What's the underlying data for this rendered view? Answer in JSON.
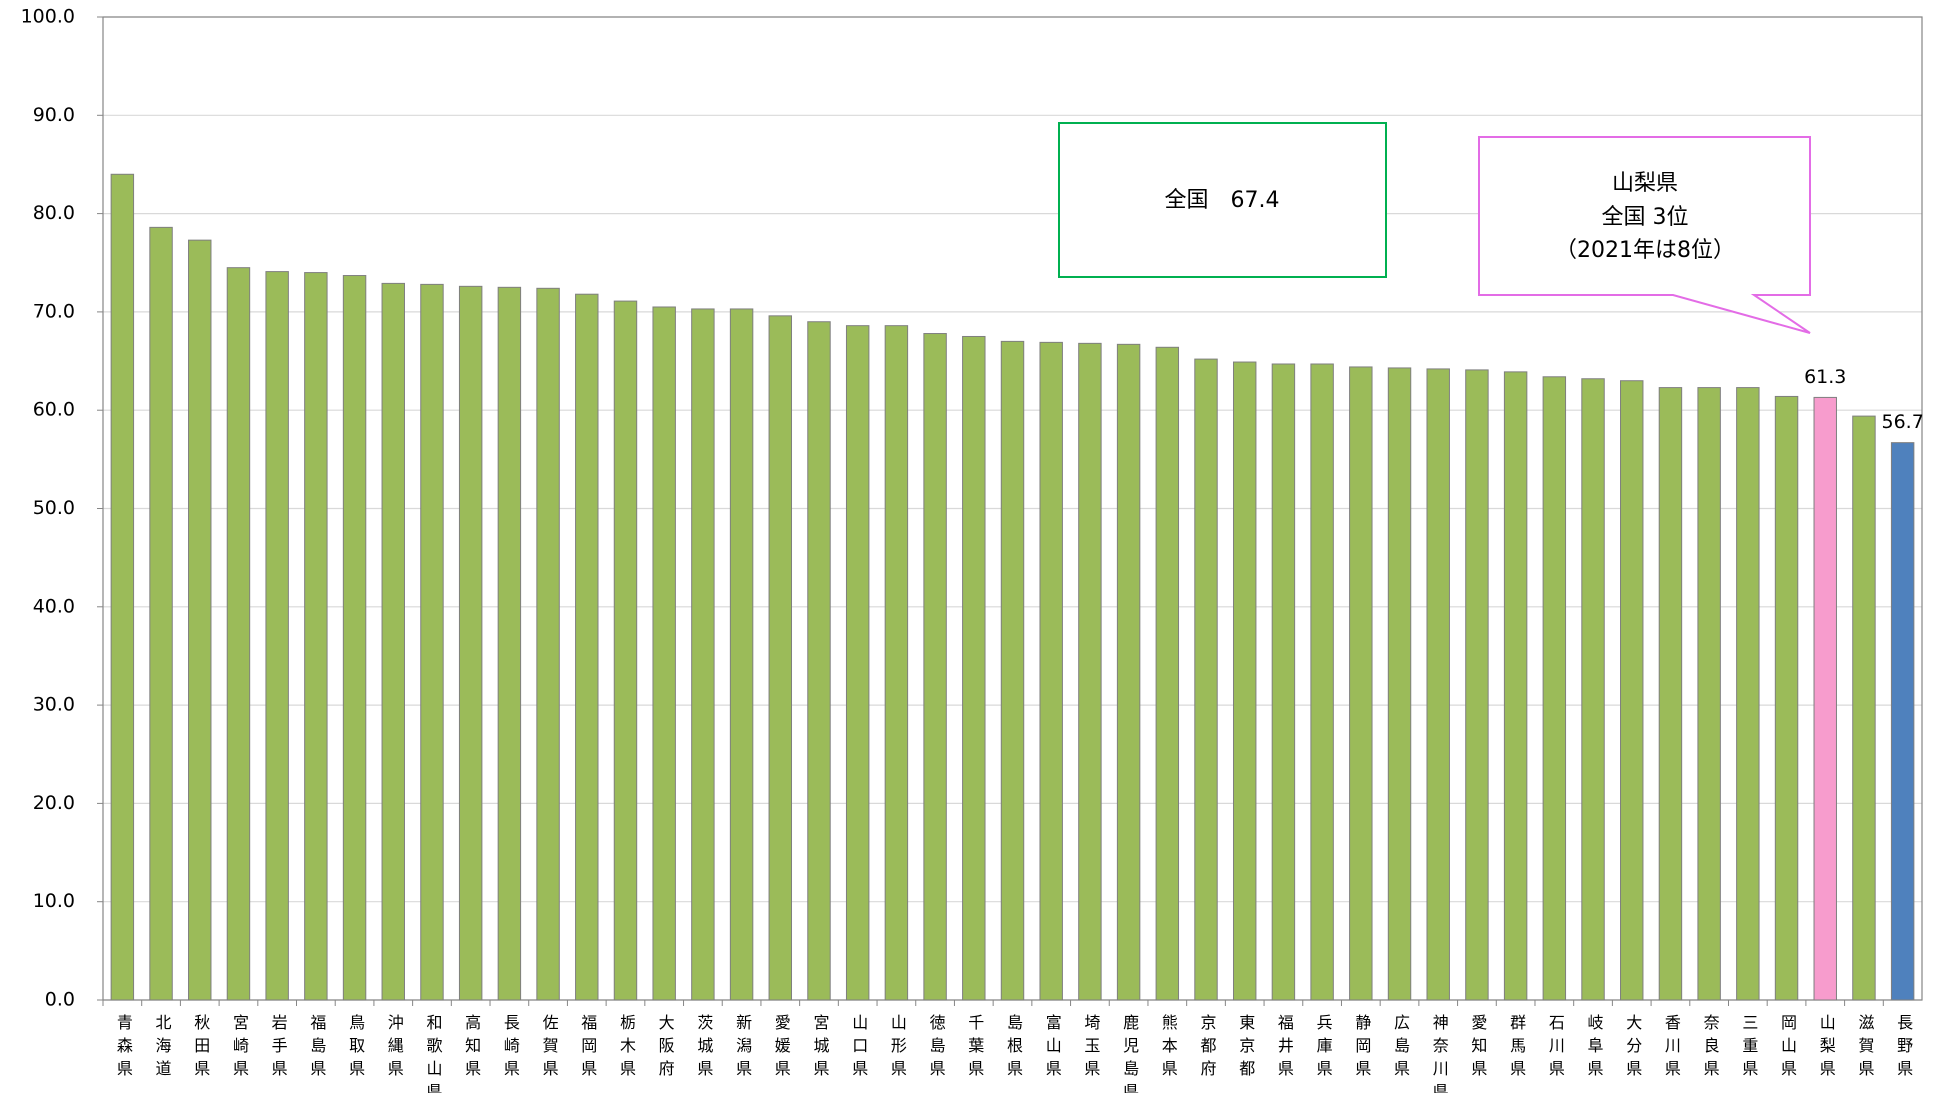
{
  "chart_data": {
    "type": "bar",
    "categories": [
      "青森県",
      "北海道",
      "秋田県",
      "宮崎県",
      "岩手県",
      "福島県",
      "鳥取県",
      "沖縄県",
      "和歌山県",
      "高知県",
      "長崎県",
      "佐賀県",
      "福岡県",
      "栃木県",
      "大阪府",
      "茨城県",
      "新潟県",
      "愛媛県",
      "宮城県",
      "山口県",
      "山形県",
      "徳島県",
      "千葉県",
      "島根県",
      "富山県",
      "埼玉県",
      "鹿児島県",
      "熊本県",
      "京都府",
      "東京都",
      "福井県",
      "兵庫県",
      "静岡県",
      "広島県",
      "神奈川県",
      "愛知県",
      "群馬県",
      "石川県",
      "岐阜県",
      "大分県",
      "香川県",
      "奈良県",
      "三重県",
      "岡山県",
      "山梨県",
      "滋賀県",
      "長野県"
    ],
    "values": [
      84.0,
      78.6,
      77.3,
      74.5,
      74.1,
      74.0,
      73.7,
      72.9,
      72.8,
      72.6,
      72.5,
      72.4,
      71.8,
      71.1,
      70.5,
      70.3,
      70.3,
      69.6,
      69.0,
      68.6,
      68.6,
      67.8,
      67.5,
      67.0,
      66.9,
      66.8,
      66.7,
      66.4,
      65.2,
      64.9,
      64.7,
      64.7,
      64.4,
      64.3,
      64.2,
      64.1,
      63.9,
      63.4,
      63.2,
      63.0,
      62.3,
      62.3,
      62.3,
      61.4,
      61.3,
      59.4,
      56.7
    ],
    "color": "#9bbb59",
    "highlight_colors": {
      "山梨県": "#f79ccd",
      "長野県": "#4f81bd"
    },
    "show_value_label": [
      false,
      false,
      false,
      false,
      false,
      false,
      false,
      false,
      false,
      false,
      false,
      false,
      false,
      false,
      false,
      false,
      false,
      false,
      false,
      false,
      false,
      false,
      false,
      false,
      false,
      false,
      false,
      false,
      false,
      false,
      false,
      false,
      false,
      false,
      false,
      false,
      false,
      false,
      false,
      false,
      false,
      false,
      false,
      false,
      true,
      false,
      true
    ],
    "ylim": [
      0,
      100
    ],
    "yticks": [
      {
        "value": 0,
        "label": "0.0"
      },
      {
        "value": 10,
        "label": "10.0"
      },
      {
        "value": 20,
        "label": "20.0"
      },
      {
        "value": 30,
        "label": "30.0"
      },
      {
        "value": 40,
        "label": "40.0"
      },
      {
        "value": 50,
        "label": "50.0"
      },
      {
        "value": 60,
        "label": "60.0"
      },
      {
        "value": 70,
        "label": "70.0"
      },
      {
        "value": 80,
        "label": "80.0"
      },
      {
        "value": 90,
        "label": "90.0"
      },
      {
        "value": 100,
        "label": "100.0"
      }
    ],
    "grid": true,
    "annotations": [
      "全国　67.4"
    ],
    "callout": [
      "山梨県",
      "全国 3位",
      "（2021年は8位）"
    ]
  }
}
